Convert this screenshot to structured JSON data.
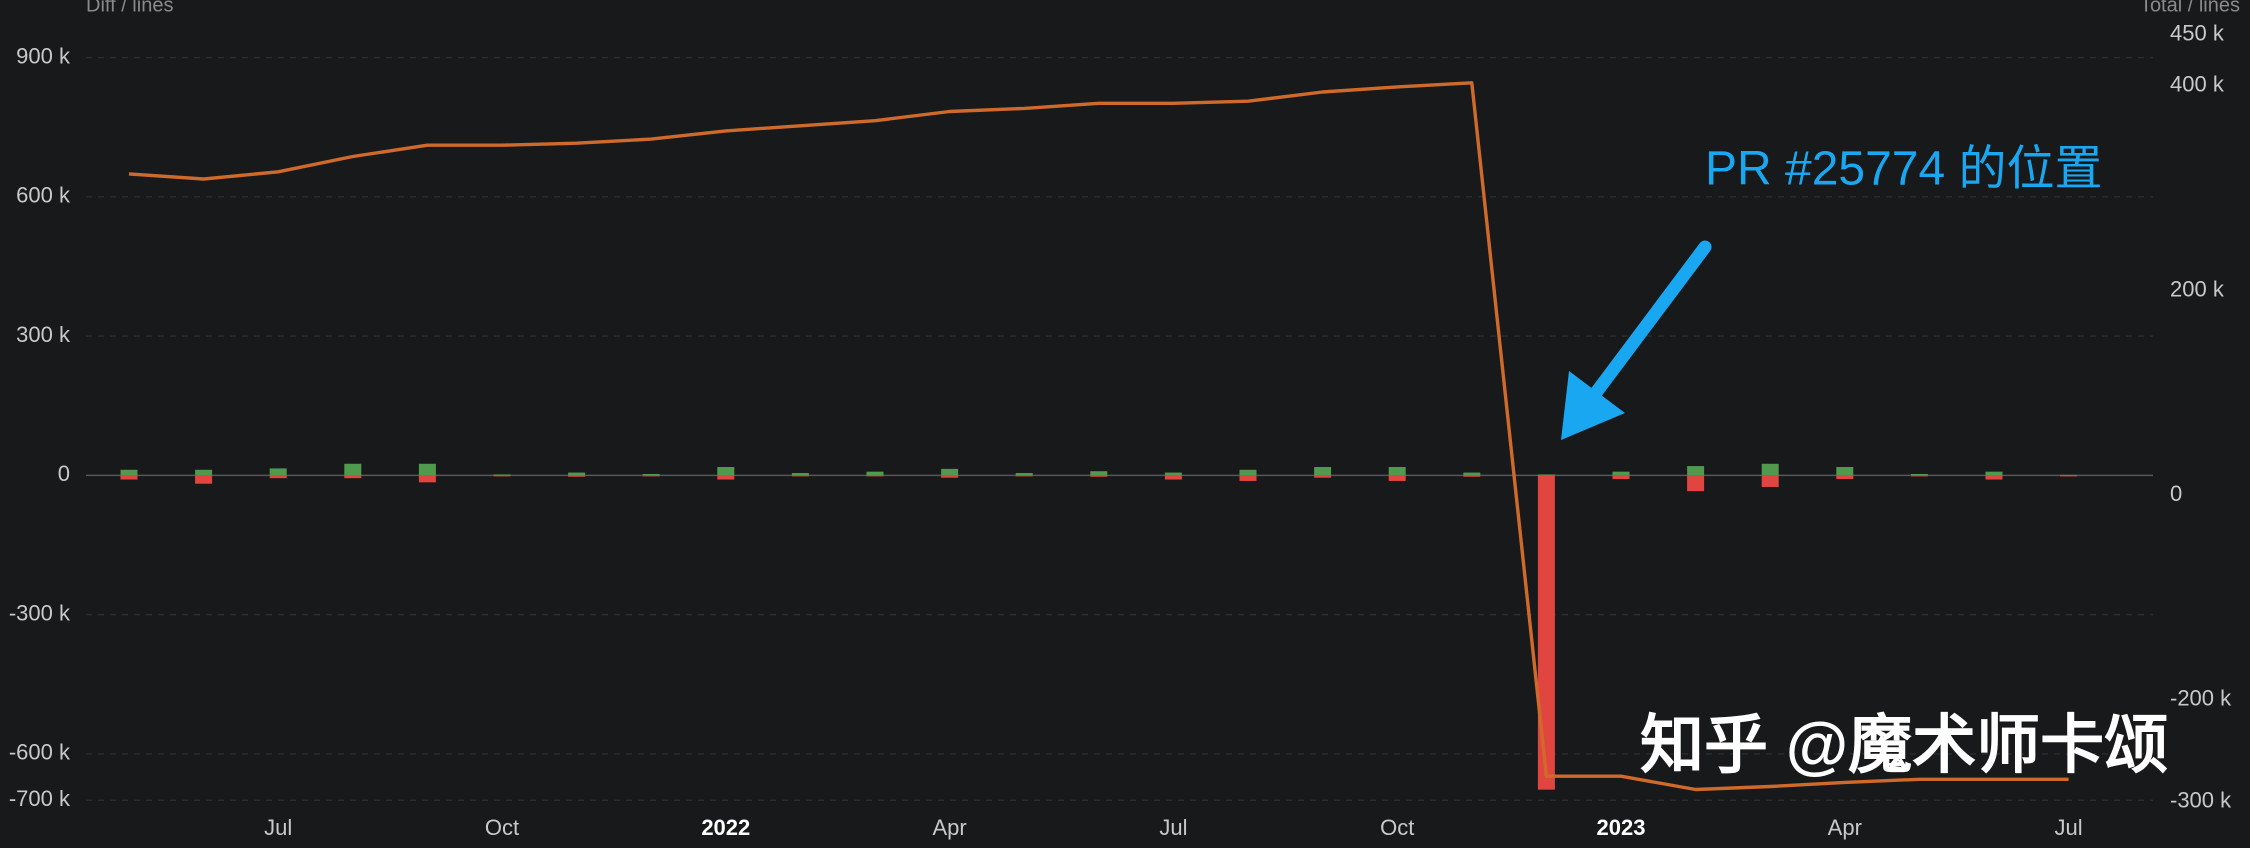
{
  "chart_data": {
    "type": "bar",
    "y_label": "Diff / lines",
    "y2_label": "Total / lines",
    "categories": [
      null,
      null,
      "Jul",
      null,
      null,
      "Oct",
      null,
      null,
      "2022",
      null,
      null,
      "Apr",
      null,
      null,
      "Jul",
      null,
      null,
      "Oct",
      null,
      null,
      "2023",
      null,
      null,
      "Apr",
      null,
      null,
      "Jul"
    ],
    "series": [
      {
        "type": "bar",
        "color": "#4f9a4c",
        "values": [
          12000,
          12000,
          15000,
          25000,
          25000,
          2000,
          6000,
          3000,
          18000,
          5000,
          8000,
          14000,
          5000,
          9000,
          6000,
          12000,
          18000,
          18000,
          6000,
          2000,
          8000,
          20000,
          25000,
          18000,
          3000,
          8000,
          1000
        ]
      },
      {
        "type": "bar",
        "color": "#e0463f",
        "values": [
          -9000,
          -18000,
          -6000,
          -6000,
          -15000,
          -2000,
          -3000,
          -1000,
          -9000,
          -2000,
          -2000,
          -5000,
          -2000,
          -3000,
          -9000,
          -12000,
          -5000,
          -12000,
          -3000,
          -677000,
          -8000,
          -34000,
          -25000,
          -8000,
          -2000,
          -9000,
          -2000
        ]
      },
      {
        "type": "line",
        "axis": "y2",
        "color": "#d06a2a",
        "values": [
          314000,
          309000,
          316000,
          331000,
          342000,
          342000,
          344000,
          348000,
          356000,
          361000,
          366000,
          375000,
          378000,
          383000,
          383000,
          385000,
          394000,
          399000,
          403000,
          -275000,
          -275000,
          -288000,
          -285000,
          -281000,
          -278000,
          -278000,
          -278000
        ]
      }
    ],
    "ylim": [
      -723000,
      1024000
    ],
    "yticks": [
      {
        "value": 900000,
        "label": "900 k"
      },
      {
        "value": 600000,
        "label": "600 k"
      },
      {
        "value": 300000,
        "label": "300 k"
      },
      0,
      {
        "value": -300000,
        "label": "-300 k"
      },
      {
        "value": -600000,
        "label": "-600 k"
      },
      {
        "value": -700000,
        "label": "-700 k"
      }
    ],
    "y2lim": [
      -309000,
      484000
    ],
    "y2ticks": [
      {
        "value": 450000,
        "label": "450 k"
      },
      {
        "value": 400000,
        "label": "400 k"
      },
      {
        "value": 200000,
        "label": "200 k"
      },
      0,
      {
        "value": -200000,
        "label": "-200 k"
      },
      {
        "value": -300000,
        "label": "-300 k"
      }
    ],
    "grid": true,
    "annotation": "PR #25774 的位置",
    "watermark": "知乎 @魔术师卡颂"
  }
}
